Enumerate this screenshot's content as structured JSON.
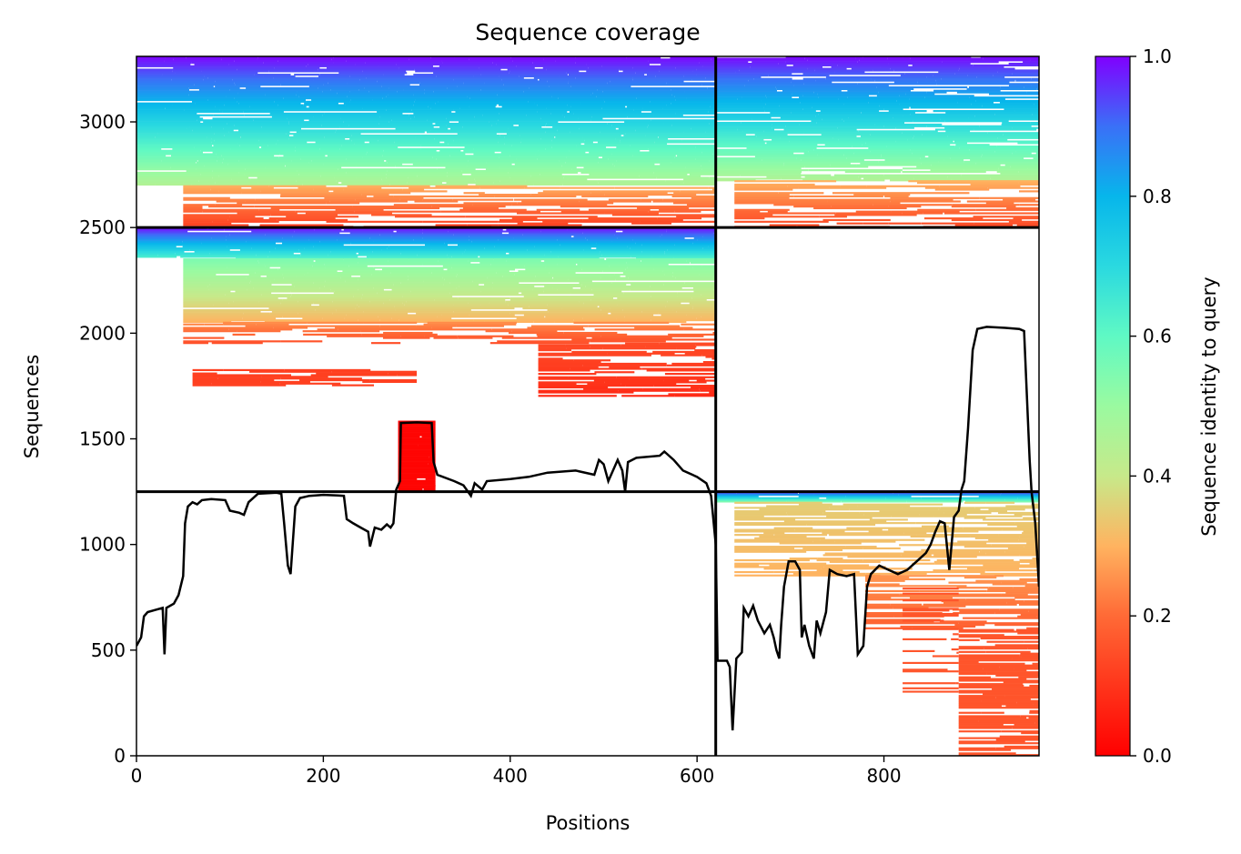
{
  "chart_data": {
    "type": "heatmap",
    "title": "Sequence coverage",
    "xlabel": "Positions",
    "ylabel": "Sequences",
    "xlim": [
      0,
      966
    ],
    "ylim": [
      0,
      3310
    ],
    "x_ticks": [
      0,
      200,
      400,
      600,
      800
    ],
    "y_ticks": [
      0,
      500,
      1000,
      1500,
      2000,
      2500,
      3000
    ],
    "grid": false,
    "colorbar": {
      "label": "Sequence identity to query",
      "range": [
        0,
        1
      ],
      "ticks": [
        "0.0",
        "0.2",
        "0.4",
        "0.6",
        "0.8",
        "1.0"
      ],
      "colormap": "rainbow_r"
    },
    "dividers": {
      "x": [
        620
      ],
      "y": [
        1250,
        2500
      ]
    },
    "coverage_line": {
      "color": "#000000",
      "points": [
        [
          0,
          520
        ],
        [
          5,
          560
        ],
        [
          8,
          660
        ],
        [
          12,
          680
        ],
        [
          20,
          690
        ],
        [
          28,
          700
        ],
        [
          30,
          480
        ],
        [
          32,
          700
        ],
        [
          40,
          720
        ],
        [
          45,
          760
        ],
        [
          50,
          850
        ],
        [
          52,
          1100
        ],
        [
          55,
          1180
        ],
        [
          60,
          1200
        ],
        [
          65,
          1190
        ],
        [
          70,
          1210
        ],
        [
          80,
          1215
        ],
        [
          95,
          1210
        ],
        [
          100,
          1160
        ],
        [
          110,
          1150
        ],
        [
          115,
          1140
        ],
        [
          120,
          1200
        ],
        [
          130,
          1240
        ],
        [
          150,
          1245
        ],
        [
          155,
          1240
        ],
        [
          158,
          1100
        ],
        [
          162,
          900
        ],
        [
          165,
          860
        ],
        [
          170,
          1180
        ],
        [
          175,
          1220
        ],
        [
          185,
          1230
        ],
        [
          200,
          1235
        ],
        [
          215,
          1232
        ],
        [
          222,
          1230
        ],
        [
          225,
          1120
        ],
        [
          232,
          1100
        ],
        [
          240,
          1080
        ],
        [
          248,
          1060
        ],
        [
          250,
          990
        ],
        [
          255,
          1080
        ],
        [
          262,
          1070
        ],
        [
          268,
          1095
        ],
        [
          272,
          1080
        ],
        [
          275,
          1100
        ],
        [
          278,
          1260
        ],
        [
          282,
          1300
        ],
        [
          283,
          1575
        ],
        [
          300,
          1578
        ],
        [
          316,
          1575
        ],
        [
          318,
          1390
        ],
        [
          322,
          1330
        ],
        [
          340,
          1300
        ],
        [
          350,
          1280
        ],
        [
          358,
          1230
        ],
        [
          362,
          1290
        ],
        [
          370,
          1260
        ],
        [
          375,
          1300
        ],
        [
          400,
          1310
        ],
        [
          420,
          1320
        ],
        [
          440,
          1340
        ],
        [
          470,
          1350
        ],
        [
          490,
          1330
        ],
        [
          495,
          1400
        ],
        [
          500,
          1380
        ],
        [
          505,
          1300
        ],
        [
          515,
          1400
        ],
        [
          520,
          1350
        ],
        [
          523,
          1250
        ],
        [
          526,
          1390
        ],
        [
          535,
          1410
        ],
        [
          560,
          1420
        ],
        [
          565,
          1440
        ],
        [
          575,
          1400
        ],
        [
          585,
          1350
        ],
        [
          600,
          1320
        ],
        [
          610,
          1290
        ],
        [
          615,
          1230
        ],
        [
          620,
          1000
        ],
        [
          622,
          450
        ],
        [
          632,
          450
        ],
        [
          635,
          420
        ],
        [
          638,
          120
        ],
        [
          642,
          460
        ],
        [
          648,
          490
        ],
        [
          650,
          700
        ],
        [
          655,
          660
        ],
        [
          660,
          710
        ],
        [
          665,
          640
        ],
        [
          672,
          580
        ],
        [
          678,
          620
        ],
        [
          682,
          560
        ],
        [
          685,
          500
        ],
        [
          688,
          460
        ],
        [
          690,
          620
        ],
        [
          693,
          800
        ],
        [
          698,
          920
        ],
        [
          705,
          920
        ],
        [
          710,
          880
        ],
        [
          712,
          560
        ],
        [
          715,
          620
        ],
        [
          720,
          520
        ],
        [
          725,
          460
        ],
        [
          728,
          640
        ],
        [
          732,
          580
        ],
        [
          738,
          680
        ],
        [
          742,
          880
        ],
        [
          750,
          860
        ],
        [
          760,
          850
        ],
        [
          768,
          860
        ],
        [
          772,
          480
        ],
        [
          778,
          520
        ],
        [
          782,
          800
        ],
        [
          786,
          860
        ],
        [
          795,
          900
        ],
        [
          805,
          880
        ],
        [
          815,
          860
        ],
        [
          825,
          880
        ],
        [
          835,
          920
        ],
        [
          845,
          960
        ],
        [
          850,
          1000
        ],
        [
          855,
          1060
        ],
        [
          860,
          1110
        ],
        [
          865,
          1100
        ],
        [
          870,
          880
        ],
        [
          875,
          1130
        ],
        [
          880,
          1160
        ],
        [
          883,
          1260
        ],
        [
          886,
          1300
        ],
        [
          890,
          1550
        ],
        [
          895,
          1920
        ],
        [
          900,
          2020
        ],
        [
          910,
          2030
        ],
        [
          930,
          2025
        ],
        [
          945,
          2020
        ],
        [
          950,
          2010
        ],
        [
          953,
          1700
        ],
        [
          956,
          1400
        ],
        [
          958,
          1250
        ],
        [
          962,
          1100
        ],
        [
          966,
          800
        ]
      ]
    }
  }
}
